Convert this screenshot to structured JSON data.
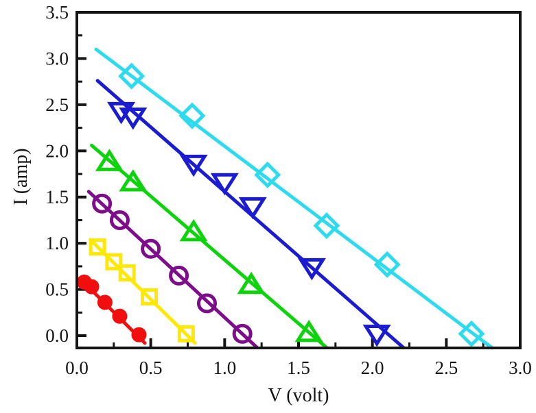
{
  "chart_data": {
    "type": "line-scatter",
    "title": "",
    "xlabel": "V (volt)",
    "ylabel": "I (amp)",
    "xlim": [
      0.0,
      3.0
    ],
    "ylim": [
      -0.133,
      3.5
    ],
    "xticks": [
      0.0,
      0.5,
      1.0,
      1.5,
      2.0,
      2.5,
      3.0
    ],
    "xtick_labels": [
      "0.0",
      "0.5",
      "1.0",
      "1.5",
      "2.0",
      "2.5",
      "3.0"
    ],
    "yticks": [
      0.0,
      0.5,
      1.0,
      1.5,
      2.0,
      2.5,
      3.0,
      3.5
    ],
    "ytick_labels": [
      "0.0",
      "0.5",
      "1.0",
      "1.5",
      "2.0",
      "2.5",
      "3.0",
      "3.5"
    ],
    "minor_tick_step": 0.25,
    "grid": false,
    "legend": false,
    "tick_direction": "in",
    "frame_color": "#141414",
    "background": "#ffffff",
    "series": [
      {
        "name": "curve-1-red-filled-circles",
        "color": "#f10e0e",
        "marker": "circle-filled",
        "marker_size": 10,
        "line": [
          [
            0.02,
            0.62
          ],
          [
            0.46,
            -0.08
          ]
        ],
        "points": [
          [
            0.05,
            0.58
          ],
          [
            0.1,
            0.53
          ],
          [
            0.19,
            0.36
          ],
          [
            0.29,
            0.21
          ],
          [
            0.42,
            0.01
          ]
        ]
      },
      {
        "name": "curve-2-yellow-open-squares",
        "color": "#ffe806",
        "marker": "square-open",
        "marker_size": 10,
        "line": [
          [
            0.09,
            1.04
          ],
          [
            0.8,
            -0.08
          ]
        ],
        "points": [
          [
            0.14,
            0.96
          ],
          [
            0.25,
            0.8
          ],
          [
            0.34,
            0.68
          ],
          [
            0.49,
            0.42
          ],
          [
            0.74,
            0.02
          ]
        ]
      },
      {
        "name": "curve-3-purple-open-circles",
        "color": "#7d0d8a",
        "marker": "circle-open",
        "marker_size": 12,
        "line": [
          [
            0.08,
            1.56
          ],
          [
            1.22,
            -0.13
          ]
        ],
        "points": [
          [
            0.17,
            1.43
          ],
          [
            0.29,
            1.25
          ],
          [
            0.5,
            0.94
          ],
          [
            0.69,
            0.65
          ],
          [
            0.88,
            0.35
          ],
          [
            1.12,
            0.02
          ]
        ]
      },
      {
        "name": "curve-4-green-open-up-triangles",
        "color": "#0cd30c",
        "marker": "triangle-up-open",
        "marker_size": 16,
        "line": [
          [
            0.1,
            2.06
          ],
          [
            1.69,
            -0.13
          ]
        ],
        "points": [
          [
            0.22,
            1.88
          ],
          [
            0.38,
            1.66
          ],
          [
            0.79,
            1.12
          ],
          [
            1.18,
            0.55
          ],
          [
            1.57,
            0.03
          ]
        ]
      },
      {
        "name": "curve-5-blue-open-down-triangles",
        "color": "#1b1bd0",
        "marker": "triangle-down-open",
        "marker_size": 16,
        "line": [
          [
            0.14,
            2.76
          ],
          [
            2.21,
            -0.13
          ]
        ],
        "points": [
          [
            0.3,
            2.43
          ],
          [
            0.38,
            2.37
          ],
          [
            0.79,
            1.86
          ],
          [
            1.0,
            1.66
          ],
          [
            1.19,
            1.4
          ],
          [
            1.59,
            0.74
          ],
          [
            2.03,
            0.02
          ]
        ]
      },
      {
        "name": "curve-6-cyan-open-diamonds",
        "color": "#2edbee",
        "marker": "diamond-open",
        "marker_size": 16,
        "line": [
          [
            0.13,
            3.1
          ],
          [
            2.81,
            -0.133
          ]
        ],
        "points": [
          [
            0.37,
            2.81
          ],
          [
            0.78,
            2.38
          ],
          [
            1.29,
            1.74
          ],
          [
            1.69,
            1.19
          ],
          [
            2.1,
            0.77
          ],
          [
            2.67,
            0.02
          ]
        ]
      }
    ]
  }
}
